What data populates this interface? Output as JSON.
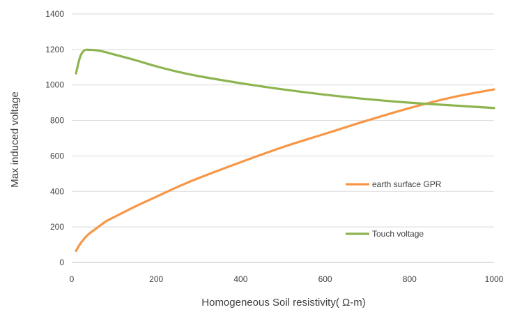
{
  "chart_data": {
    "type": "line",
    "title": "",
    "xlabel": "Homogeneous Soil resistivity( Ω-m)",
    "ylabel": "Max induced voltage",
    "xlim": [
      0,
      1000
    ],
    "ylim": [
      0,
      1400
    ],
    "x_ticks": [
      "0",
      "200",
      "400",
      "600",
      "800",
      "1000"
    ],
    "y_ticks": [
      "0",
      "200",
      "400",
      "600",
      "800",
      "1000",
      "1200",
      "1400"
    ],
    "grid": "horizontal",
    "legend_placement": "right",
    "series": [
      {
        "name": "earth surface GPR",
        "color": "#F79646",
        "x": [
          10,
          20,
          30,
          40,
          60,
          80,
          100,
          150,
          200,
          250,
          300,
          400,
          500,
          600,
          700,
          800,
          900,
          1000
        ],
        "y": [
          65,
          105,
          135,
          160,
          195,
          230,
          255,
          315,
          370,
          425,
          475,
          565,
          650,
          725,
          800,
          870,
          930,
          975
        ]
      },
      {
        "name": "Touch voltage",
        "color": "#8DB450",
        "x": [
          10,
          20,
          30,
          40,
          60,
          80,
          100,
          150,
          200,
          250,
          300,
          400,
          500,
          600,
          700,
          800,
          900,
          1000
        ],
        "y": [
          1065,
          1160,
          1195,
          1198,
          1195,
          1185,
          1172,
          1140,
          1105,
          1075,
          1050,
          1010,
          975,
          945,
          920,
          900,
          885,
          870
        ]
      }
    ]
  }
}
